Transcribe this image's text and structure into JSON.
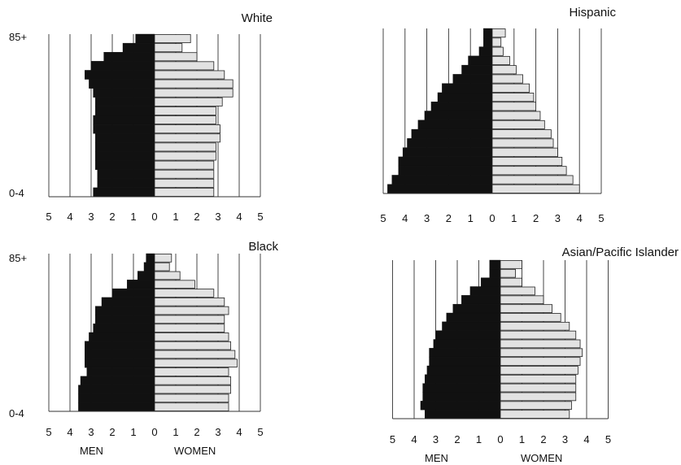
{
  "chart_data": [
    {
      "type": "bar",
      "title": "White",
      "top_label": "85+",
      "bottom_label": "0-4",
      "xlim": [
        -5,
        5
      ],
      "ticks": [
        "5",
        "4",
        "3",
        "2",
        "1",
        "0",
        "1",
        "2",
        "3",
        "4",
        "5"
      ],
      "legend_men": "",
      "legend_women": "",
      "series": [
        {
          "name": "MEN",
          "values": [
            0.9,
            1.5,
            2.4,
            3.0,
            3.3,
            3.1,
            2.9,
            2.8,
            2.8,
            2.9,
            2.9,
            2.8,
            2.8,
            2.8,
            2.8,
            2.7,
            2.7,
            2.9
          ]
        },
        {
          "name": "WOMEN",
          "values": [
            1.7,
            1.3,
            2.0,
            2.8,
            3.3,
            3.7,
            3.7,
            3.2,
            2.9,
            2.9,
            3.1,
            3.1,
            2.9,
            2.9,
            2.8,
            2.8,
            2.8,
            2.8
          ]
        }
      ]
    },
    {
      "type": "bar",
      "title": "Hispanic",
      "top_label": "",
      "bottom_label": "",
      "xlim": [
        -5,
        5
      ],
      "ticks": [
        "5",
        "4",
        "3",
        "2",
        "1",
        "0",
        "1",
        "2",
        "3",
        "4",
        "5"
      ],
      "legend_men": "",
      "legend_women": "",
      "series": [
        {
          "name": "MEN",
          "values": [
            0.4,
            0.4,
            0.6,
            1.1,
            1.4,
            1.8,
            2.3,
            2.5,
            2.8,
            3.1,
            3.4,
            3.7,
            3.9,
            4.1,
            4.3,
            4.3,
            4.6,
            4.8
          ]
        },
        {
          "name": "WOMEN",
          "values": [
            0.6,
            0.4,
            0.5,
            0.8,
            1.1,
            1.4,
            1.7,
            1.9,
            2.0,
            2.2,
            2.4,
            2.7,
            2.8,
            3.0,
            3.2,
            3.4,
            3.7,
            4.0
          ]
        }
      ]
    },
    {
      "type": "bar",
      "title": "Black",
      "top_label": "85+",
      "bottom_label": "0-4",
      "xlim": [
        -5,
        5
      ],
      "ticks": [
        "5",
        "4",
        "3",
        "2",
        "1",
        "0",
        "1",
        "2",
        "3",
        "4",
        "5"
      ],
      "legend_men": "MEN",
      "legend_women": "WOMEN",
      "series": [
        {
          "name": "MEN",
          "values": [
            0.4,
            0.5,
            0.8,
            1.3,
            2.0,
            2.5,
            2.8,
            2.8,
            2.9,
            3.1,
            3.3,
            3.3,
            3.3,
            3.2,
            3.5,
            3.6,
            3.6,
            3.6
          ]
        },
        {
          "name": "WOMEN",
          "values": [
            0.8,
            0.7,
            1.2,
            1.9,
            2.8,
            3.3,
            3.5,
            3.3,
            3.3,
            3.5,
            3.6,
            3.8,
            3.9,
            3.5,
            3.6,
            3.6,
            3.5,
            3.5
          ]
        }
      ]
    },
    {
      "type": "bar",
      "title": "Asian/Pacific Islander",
      "top_label": "",
      "bottom_label": "",
      "xlim": [
        -5,
        5
      ],
      "ticks": [
        "5",
        "4",
        "3",
        "2",
        "1",
        "0",
        "1",
        "2",
        "3",
        "4",
        "5"
      ],
      "legend_men": "MEN",
      "legend_women": "WOMEN",
      "series": [
        {
          "name": "MEN",
          "values": [
            0.5,
            0.5,
            0.9,
            1.4,
            1.8,
            2.2,
            2.5,
            2.7,
            3.0,
            3.1,
            3.3,
            3.3,
            3.4,
            3.5,
            3.6,
            3.6,
            3.7,
            3.5
          ]
        },
        {
          "name": "WOMEN",
          "values": [
            1.0,
            0.7,
            1.0,
            1.6,
            2.0,
            2.4,
            2.8,
            3.2,
            3.5,
            3.7,
            3.8,
            3.7,
            3.6,
            3.5,
            3.5,
            3.5,
            3.3,
            3.2
          ]
        }
      ]
    }
  ],
  "colors": {
    "men": "#111111",
    "women": "#e2e2e2",
    "grid": "#333333",
    "outline": "#222222"
  }
}
